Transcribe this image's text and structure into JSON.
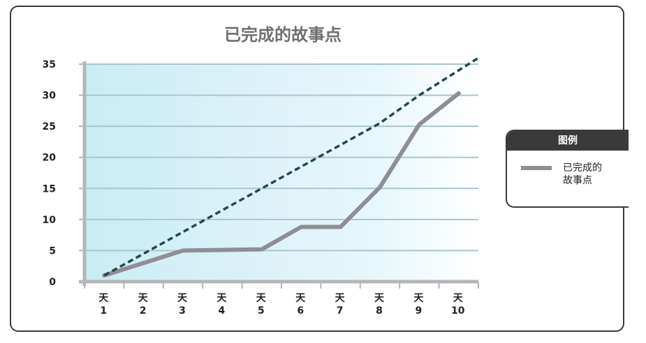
{
  "chart_data": {
    "type": "line",
    "title": "已完成的故事点",
    "categories": [
      "天\n1",
      "天\n2",
      "天\n3",
      "天\n4",
      "天\n5",
      "天\n6",
      "天\n7",
      "天\n8",
      "天\n9",
      "天\n10"
    ],
    "yticks": [
      0,
      5,
      10,
      15,
      20,
      25,
      30,
      35
    ],
    "ylim": [
      0,
      35
    ],
    "grid": true,
    "legend": {
      "title": "图例",
      "placement": "right"
    },
    "series": [
      {
        "name": "已完成的故事点",
        "color": "#8e8e93",
        "values": [
          1,
          3,
          5,
          5.1,
          5.2,
          8.8,
          8.8,
          15.2,
          25.3,
          30.3
        ]
      },
      {
        "name": "",
        "style": "dashed",
        "color": "#1f4a4c",
        "values": [
          1,
          4.5,
          8,
          11.5,
          15,
          18.5,
          22,
          25.5,
          30,
          34
        ],
        "extends_to": 36
      }
    ]
  }
}
